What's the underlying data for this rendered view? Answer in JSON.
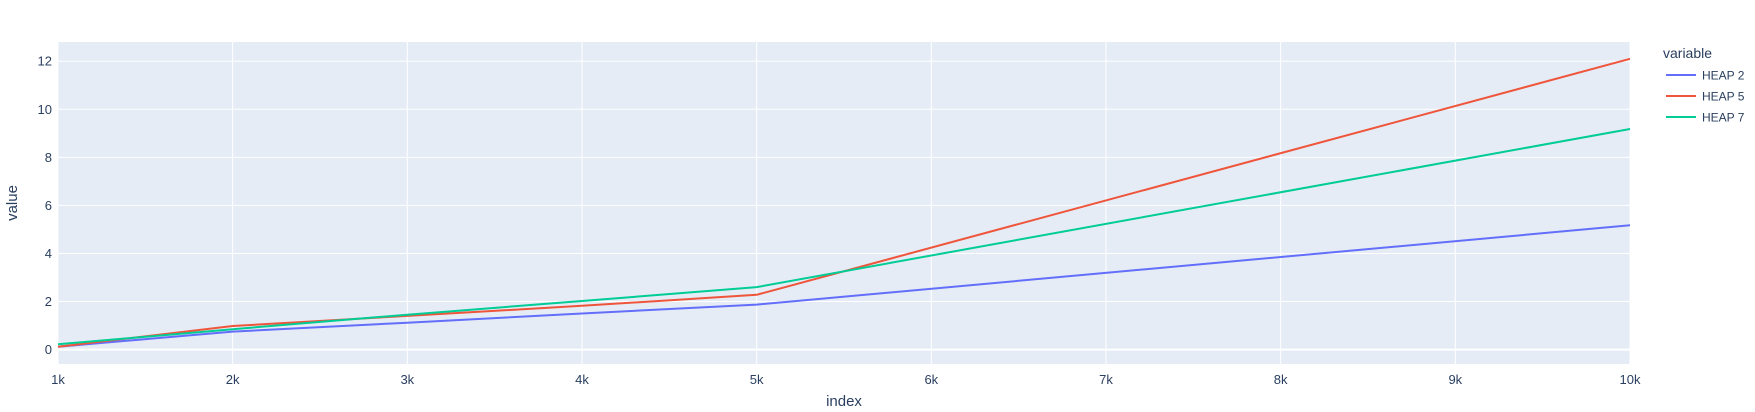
{
  "chart_data": {
    "type": "line",
    "title": "",
    "xlabel": "index",
    "ylabel": "value",
    "xlim": [
      1000,
      10000
    ],
    "ylim": [
      -0.6,
      12.8
    ],
    "x_tick_values": [
      1000,
      2000,
      3000,
      4000,
      5000,
      6000,
      7000,
      8000,
      9000,
      10000
    ],
    "x_tick_labels": [
      "1k",
      "2k",
      "3k",
      "4k",
      "5k",
      "6k",
      "7k",
      "8k",
      "9k",
      "10k"
    ],
    "y_tick_values": [
      0,
      2,
      4,
      6,
      8,
      10,
      12
    ],
    "y_tick_labels": [
      "0",
      "2",
      "4",
      "6",
      "8",
      "10",
      "12"
    ],
    "x": [
      1000,
      2000,
      3000,
      4000,
      5000,
      10000
    ],
    "series": [
      {
        "name": "HEAP 2",
        "color": "#636efa",
        "values": [
          0.12,
          0.75,
          1.12,
          1.5,
          1.87,
          5.17
        ]
      },
      {
        "name": "HEAP 5",
        "color": "#ef553b",
        "values": [
          0.12,
          0.98,
          1.4,
          1.82,
          2.28,
          12.1
        ]
      },
      {
        "name": "HEAP 7",
        "color": "#00cc96",
        "values": [
          0.22,
          0.85,
          1.45,
          2.02,
          2.6,
          9.18
        ]
      }
    ],
    "legend": {
      "title": "variable",
      "position": "top-right"
    },
    "colors": {
      "plot_bg": "#e5ecf6",
      "grid": "#ffffff",
      "text": "#2a3f5f"
    }
  }
}
